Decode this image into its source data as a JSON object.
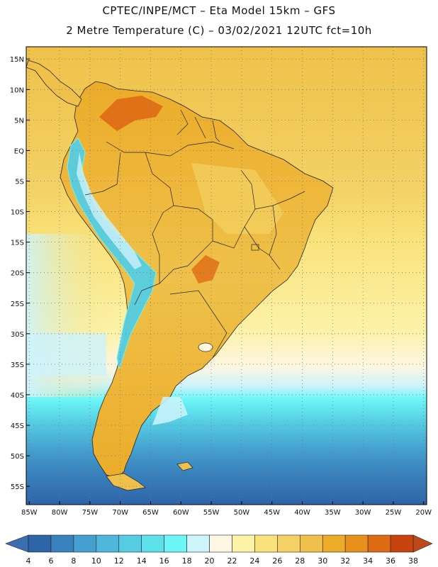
{
  "header": {
    "title_line1": "CPTEC/INPE/MCT –  Eta Model 15km – GFS",
    "title_line2": "2 Metre Temperature (C) – 03/02/2021 12UTC fct=10h"
  },
  "map": {
    "lon_min": -85.5,
    "lon_max": -19.5,
    "lat_min": -58.0,
    "lat_max": 17.0,
    "lat_ticks": [
      {
        "lat": 15,
        "label": "15N"
      },
      {
        "lat": 10,
        "label": "10N"
      },
      {
        "lat": 5,
        "label": "5N"
      },
      {
        "lat": 0,
        "label": "EQ"
      },
      {
        "lat": -5,
        "label": "5S"
      },
      {
        "lat": -10,
        "label": "10S"
      },
      {
        "lat": -15,
        "label": "15S"
      },
      {
        "lat": -20,
        "label": "20S"
      },
      {
        "lat": -25,
        "label": "25S"
      },
      {
        "lat": -30,
        "label": "30S"
      },
      {
        "lat": -35,
        "label": "35S"
      },
      {
        "lat": -40,
        "label": "40S"
      },
      {
        "lat": -45,
        "label": "45S"
      },
      {
        "lat": -50,
        "label": "50S"
      },
      {
        "lat": -55,
        "label": "55S"
      }
    ],
    "lon_ticks": [
      {
        "lon": -85,
        "label": "85W"
      },
      {
        "lon": -80,
        "label": "80W"
      },
      {
        "lon": -75,
        "label": "75W"
      },
      {
        "lon": -70,
        "label": "70W"
      },
      {
        "lon": -65,
        "label": "65W"
      },
      {
        "lon": -60,
        "label": "60W"
      },
      {
        "lon": -55,
        "label": "55W"
      },
      {
        "lon": -50,
        "label": "50W"
      },
      {
        "lon": -45,
        "label": "45W"
      },
      {
        "lon": -40,
        "label": "40W"
      },
      {
        "lon": -35,
        "label": "35W"
      },
      {
        "lon": -30,
        "label": "30W"
      },
      {
        "lon": -25,
        "label": "25W"
      },
      {
        "lon": -20,
        "label": "20W"
      }
    ]
  },
  "colorbar": {
    "labels": [
      "4",
      "6",
      "8",
      "10",
      "12",
      "14",
      "16",
      "18",
      "20",
      "22",
      "24",
      "26",
      "28",
      "30",
      "32",
      "34",
      "36",
      "38"
    ],
    "low_color": "#3b6fb0",
    "high_color": "#c0471a",
    "colors": [
      "#2e64a8",
      "#3a82bd",
      "#45a0cf",
      "#4db8db",
      "#56cde3",
      "#5ce0ea",
      "#6cf6f8",
      "#cdf3fb",
      "#fdf6e3",
      "#fcf2a8",
      "#f9e27a",
      "#f3d164",
      "#efc14a",
      "#ecac2a",
      "#e8901e",
      "#df6a14",
      "#c9430e"
    ]
  }
}
